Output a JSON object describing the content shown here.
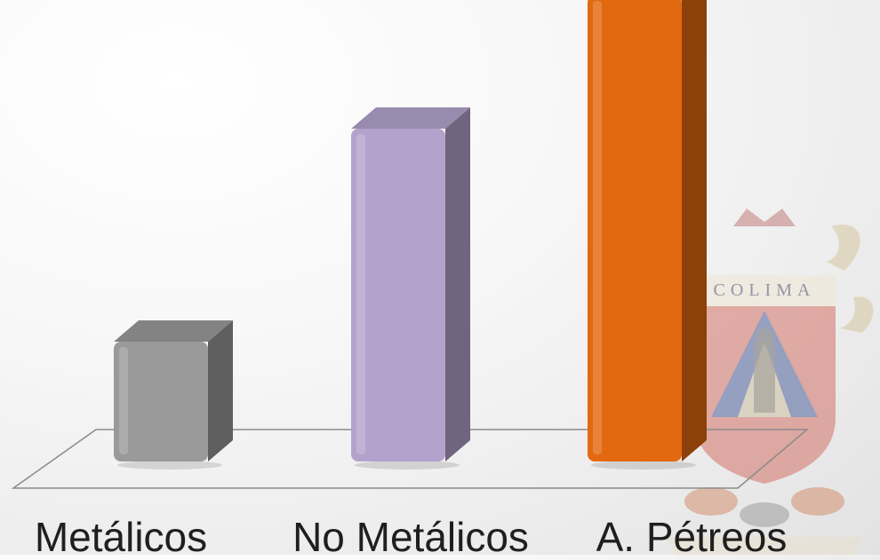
{
  "chart_data": {
    "type": "bar",
    "style": "3d",
    "categories": [
      "Metálicos",
      "No Metálicos",
      "A. Pétreos"
    ],
    "values": [
      18,
      50,
      70
    ],
    "ylim": [
      0,
      74
    ],
    "grid": false,
    "legend": "none",
    "colors": {
      "Metálicos": "#9a9a9a",
      "No Metálicos": "#b3a3cc",
      "A. Pétreos": "#e2690f"
    }
  },
  "watermark": {
    "type": "coat-of-arms",
    "text": "COLIMA"
  }
}
